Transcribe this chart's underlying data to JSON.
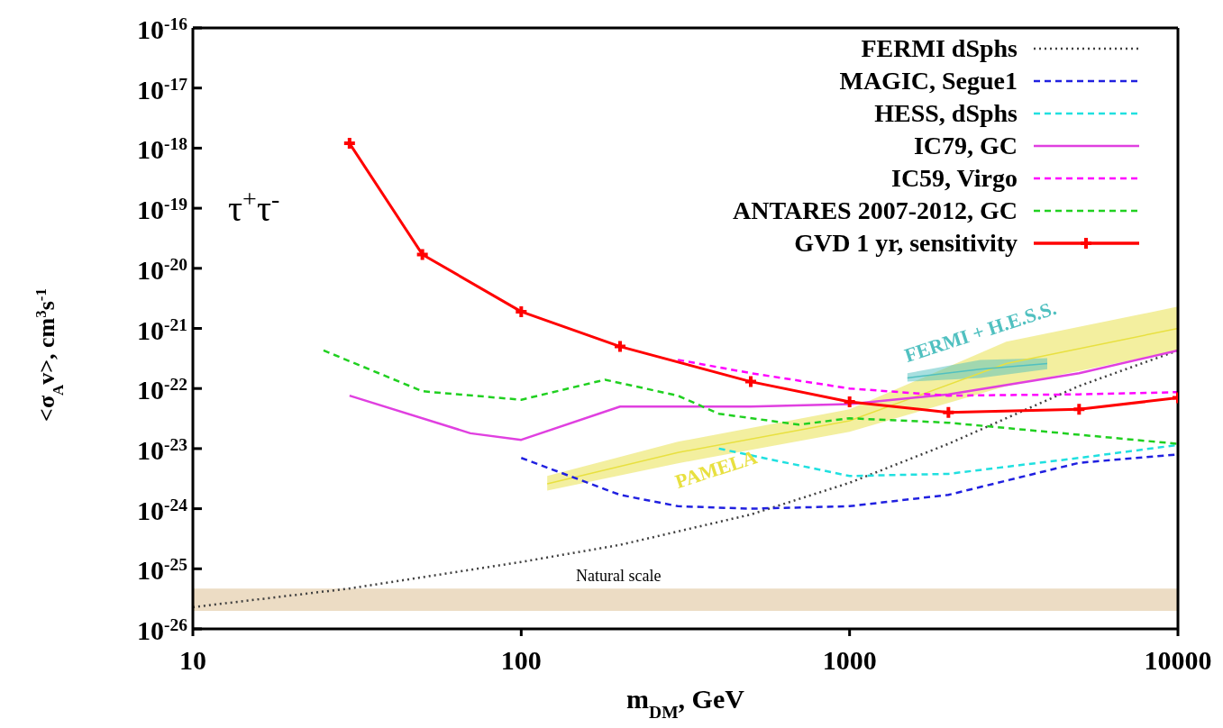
{
  "chart_data": {
    "type": "line",
    "xlabel": "m$_{DM}$, GeV",
    "ylabel": "<σ$_{A}$v>, cm$^{3}$s$^{-1}$",
    "log": "xy",
    "grid": false,
    "legend": "top right",
    "xlim": [
      10,
      10000
    ],
    "xticks": [
      10,
      100,
      1000,
      10000
    ],
    "ylim": [
      1e-26,
      1e-16
    ],
    "yticks": [
      {
        "value": 1e-26,
        "label": "10$^{-26}$"
      },
      {
        "value": 1e-25,
        "label": "10$^{-25}$"
      },
      {
        "value": 1e-24,
        "label": "10$^{-24}$"
      },
      {
        "value": 1e-23,
        "label": "10$^{-23}$"
      },
      {
        "value": 1e-22,
        "label": "10$^{-22}$"
      },
      {
        "value": 1e-21,
        "label": "10$^{-21}$"
      },
      {
        "value": 1e-20,
        "label": "10$^{-20}$"
      },
      {
        "value": 1e-19,
        "label": "10$^{-19}$"
      },
      {
        "value": 1e-18,
        "label": "10$^{-18}$"
      },
      {
        "value": 1e-17,
        "label": "10$^{-17}$"
      },
      {
        "value": 1e-16,
        "label": "10$^{-16}$"
      }
    ],
    "series": [
      {
        "type": "line",
        "name": "PAMELA",
        "color": "#e8e040",
        "x": [
          120,
          300,
          1000,
          3000,
          10000
        ],
        "values": [
          2.6e-24,
          8.6e-24,
          2.9e-23,
          2.6e-22,
          1e-21
        ],
        "lower": [
          2e-24,
          5.7e-24,
          1.9e-23,
          1.1e-22,
          4.3e-22
        ],
        "upper": [
          3.5e-24,
          1.3e-23,
          4.5e-23,
          6e-22,
          2.3e-21
        ]
      },
      {
        "type": "line",
        "name": "FERMI + H.E.S.S.",
        "color": "#50c0c0",
        "x": [
          1500,
          2500,
          4000
        ],
        "values": [
          1.5e-22,
          2.1e-22,
          2.6e-22
        ],
        "lower": [
          1.3e-22,
          1.5e-22,
          2.1e-22
        ],
        "upper": [
          1.8e-22,
          3e-22,
          3.2e-22
        ]
      },
      {
        "name": "FERMI dSphs",
        "color": "#404040",
        "line_style": "dotted",
        "marker": "none",
        "x": [
          10,
          30,
          100,
          200,
          500,
          1000,
          2000,
          5000,
          10000
        ],
        "values": [
          2.3e-26,
          4.7e-26,
          1.3e-25,
          2.5e-25,
          8e-25,
          2.7e-24,
          1.2e-23,
          1.1e-22,
          4.3e-22
        ]
      },
      {
        "name": "MAGIC, Segue1",
        "color": "#2020e0",
        "line_style": "dashed",
        "marker": "none",
        "x": [
          100,
          200,
          300,
          500,
          1000,
          2000,
          5000,
          10000
        ],
        "values": [
          7e-24,
          1.7e-24,
          1.1e-24,
          1e-24,
          1.1e-24,
          1.7e-24,
          5.8e-24,
          8e-24
        ]
      },
      {
        "name": "HESS, dSphs",
        "color": "#20e0e0",
        "line_style": "dashed",
        "marker": "none",
        "x": [
          400,
          1000,
          2000,
          5000,
          10000
        ],
        "values": [
          1e-23,
          3.5e-24,
          3.8e-24,
          7e-24,
          1.15e-23
        ]
      },
      {
        "name": "IC79, GC",
        "color": "#e040e0",
        "line_style": "solid",
        "marker": "none",
        "x": [
          30,
          70,
          100,
          200,
          500,
          1000,
          2000,
          5000,
          10000
        ],
        "values": [
          7.6e-23,
          1.8e-23,
          1.4e-23,
          5e-23,
          5e-23,
          5.5e-23,
          8e-23,
          1.8e-22,
          4.3e-22
        ]
      },
      {
        "name": "IC59, Virgo",
        "color": "#ff00ff",
        "line_style": "dashed",
        "marker": "none",
        "x": [
          300,
          500,
          1000,
          2000,
          5000,
          10000
        ],
        "values": [
          3e-22,
          1.8e-22,
          1e-22,
          7.6e-23,
          8e-23,
          8.7e-23
        ]
      },
      {
        "name": "ANTARES 2007-2012, GC",
        "color": "#20d020",
        "line_style": "dashed",
        "marker": "none",
        "x": [
          25,
          50,
          100,
          180,
          300,
          400,
          700,
          1000,
          2000,
          10000
        ],
        "values": [
          4.3e-22,
          9e-23,
          6.5e-23,
          1.4e-22,
          7.6e-23,
          3.8e-23,
          2.5e-23,
          3.2e-23,
          2.7e-23,
          1.2e-23
        ]
      },
      {
        "name": "GVD 1 yr, sensitivity",
        "color": "#ff0000",
        "line_style": "solid",
        "marker": "cross",
        "x": [
          30,
          50,
          100,
          200,
          500,
          1000,
          2000,
          5000,
          10000
        ],
        "values": [
          1.2e-18,
          1.7e-20,
          1.9e-21,
          5e-22,
          1.3e-22,
          6e-23,
          4e-23,
          4.5e-23,
          7e-23
        ]
      }
    ],
    "bands": [
      {
        "axis": "y",
        "from": 2e-26,
        "to": 4.7e-26,
        "label": "Natural scale",
        "color": "#ecdcc4"
      }
    ],
    "annotations": [
      "τ$^{+}$τ$^{-}$"
    ]
  }
}
